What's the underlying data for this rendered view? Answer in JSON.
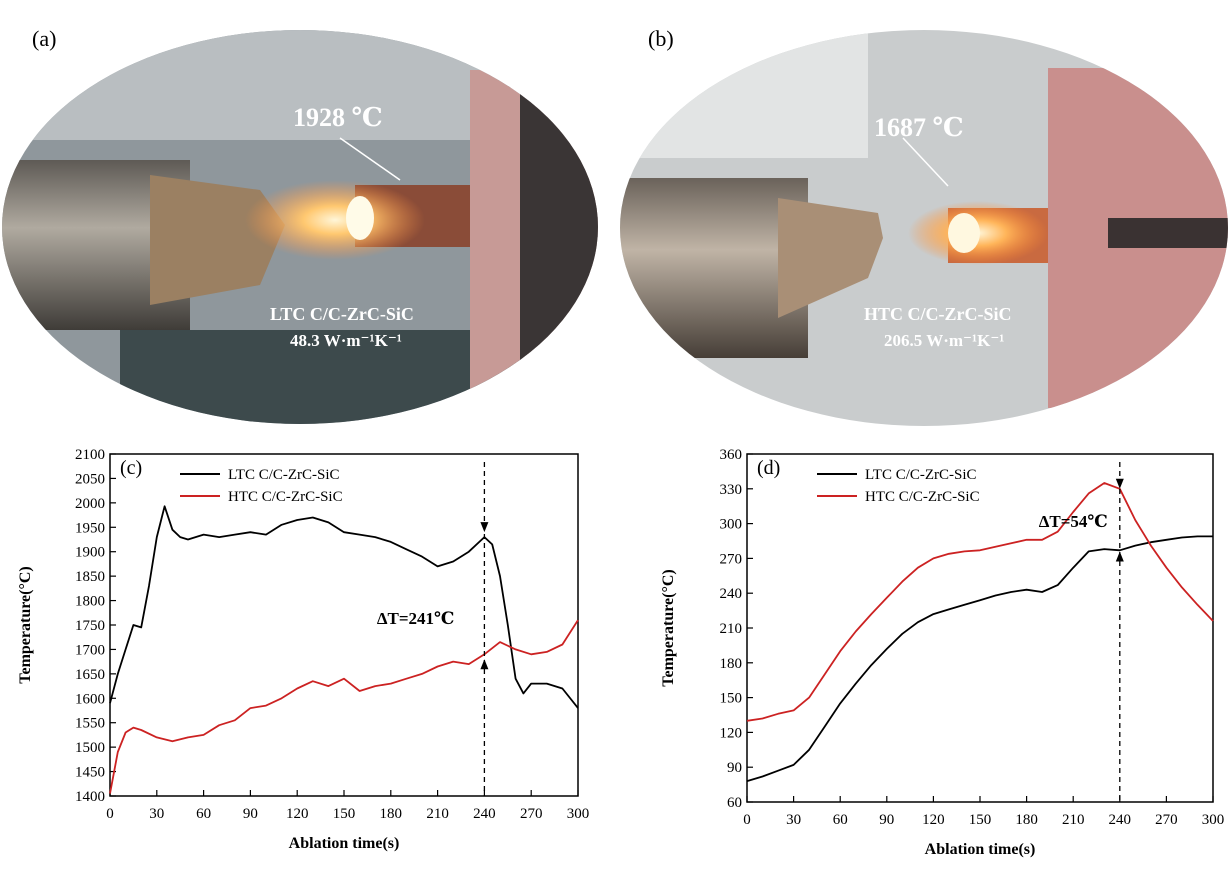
{
  "panels": {
    "a": {
      "label": "(a)",
      "temp": "1928 ℃",
      "sample": "LTC C/C-ZrC-SiC",
      "conductivity": "48.3 W·m⁻¹K⁻¹"
    },
    "b": {
      "label": "(b)",
      "temp": "1687 ℃",
      "sample": "HTC C/C-ZrC-SiC",
      "conductivity": "206.5 W·m⁻¹K⁻¹"
    },
    "c": {
      "label": "(c)"
    },
    "d": {
      "label": "(d)"
    }
  },
  "colors": {
    "ltc": "#000000",
    "htc": "#cc2222",
    "flame": "#ffd38a",
    "metal": "#8a857c",
    "background_photo": "#9aa0a4"
  },
  "chart_data": [
    {
      "type": "line",
      "panel": "(c)",
      "xlabel": "Ablation time(s)",
      "ylabel": "Temperature(°C)",
      "xlim": [
        0,
        300
      ],
      "ylim": [
        1400,
        2100
      ],
      "xticks": [
        0,
        30,
        60,
        90,
        120,
        150,
        180,
        210,
        240,
        270,
        300
      ],
      "yticks": [
        1400,
        1450,
        1500,
        1550,
        1600,
        1650,
        1700,
        1750,
        1800,
        1850,
        1900,
        1950,
        2000,
        2050,
        2100
      ],
      "legend_position": "top-left",
      "annotation": {
        "text": "ΔT=241℃",
        "x": 240,
        "y_top": 1940,
        "y_bottom": 1680
      },
      "series": [
        {
          "name": "LTC C/C-ZrC-SiC",
          "color": "#000000",
          "x": [
            0,
            5,
            10,
            15,
            20,
            25,
            30,
            35,
            40,
            45,
            50,
            60,
            70,
            80,
            90,
            100,
            110,
            120,
            130,
            140,
            150,
            160,
            170,
            180,
            190,
            200,
            210,
            220,
            230,
            240,
            245,
            250,
            255,
            260,
            265,
            270,
            280,
            290,
            300
          ],
          "y": [
            1590,
            1650,
            1700,
            1750,
            1745,
            1830,
            1930,
            1993,
            1945,
            1930,
            1925,
            1935,
            1930,
            1935,
            1940,
            1935,
            1955,
            1965,
            1970,
            1960,
            1940,
            1935,
            1930,
            1920,
            1905,
            1890,
            1870,
            1880,
            1900,
            1930,
            1915,
            1850,
            1750,
            1640,
            1610,
            1630,
            1630,
            1620,
            1580
          ]
        },
        {
          "name": "HTC C/C-ZrC-SiC",
          "color": "#cc2222",
          "x": [
            0,
            5,
            10,
            15,
            20,
            30,
            40,
            50,
            60,
            70,
            80,
            90,
            100,
            110,
            120,
            130,
            140,
            150,
            160,
            170,
            180,
            190,
            200,
            210,
            220,
            230,
            240,
            250,
            260,
            270,
            280,
            290,
            300
          ],
          "y": [
            1405,
            1490,
            1530,
            1540,
            1535,
            1520,
            1512,
            1520,
            1525,
            1545,
            1555,
            1580,
            1585,
            1600,
            1620,
            1635,
            1625,
            1640,
            1615,
            1625,
            1630,
            1640,
            1650,
            1665,
            1675,
            1670,
            1690,
            1715,
            1700,
            1690,
            1695,
            1710,
            1760
          ]
        }
      ]
    },
    {
      "type": "line",
      "panel": "(d)",
      "xlabel": "Ablation time(s)",
      "ylabel": "Temperature(°C)",
      "xlim": [
        0,
        300
      ],
      "ylim": [
        60,
        360
      ],
      "xticks": [
        0,
        30,
        60,
        90,
        120,
        150,
        180,
        210,
        240,
        270,
        300
      ],
      "yticks": [
        60,
        90,
        120,
        150,
        180,
        210,
        240,
        270,
        300,
        330,
        360
      ],
      "legend_position": "top-left",
      "annotation": {
        "text": "ΔT=54℃",
        "x": 240,
        "y_top": 330,
        "y_bottom": 276
      },
      "series": [
        {
          "name": "LTC C/C-ZrC-SiC",
          "color": "#000000",
          "x": [
            0,
            10,
            20,
            30,
            40,
            50,
            60,
            70,
            80,
            90,
            100,
            110,
            120,
            130,
            140,
            150,
            160,
            170,
            180,
            190,
            200,
            210,
            220,
            230,
            240,
            250,
            260,
            270,
            280,
            290,
            300
          ],
          "y": [
            78,
            82,
            87,
            92,
            105,
            125,
            145,
            162,
            178,
            192,
            205,
            215,
            222,
            226,
            230,
            234,
            238,
            241,
            243,
            241,
            247,
            262,
            276,
            278,
            277,
            281,
            284,
            286,
            288,
            289,
            289
          ]
        },
        {
          "name": "HTC C/C-ZrC-SiC",
          "color": "#cc2222",
          "x": [
            0,
            10,
            20,
            30,
            40,
            50,
            60,
            70,
            80,
            90,
            100,
            110,
            120,
            130,
            140,
            150,
            160,
            170,
            180,
            190,
            200,
            210,
            220,
            230,
            240,
            250,
            260,
            270,
            280,
            290,
            300
          ],
          "y": [
            130,
            132,
            136,
            139,
            150,
            170,
            190,
            207,
            222,
            236,
            250,
            262,
            270,
            274,
            276,
            277,
            280,
            283,
            286,
            286,
            293,
            310,
            326,
            335,
            330,
            303,
            281,
            262,
            245,
            230,
            216
          ]
        }
      ]
    }
  ]
}
